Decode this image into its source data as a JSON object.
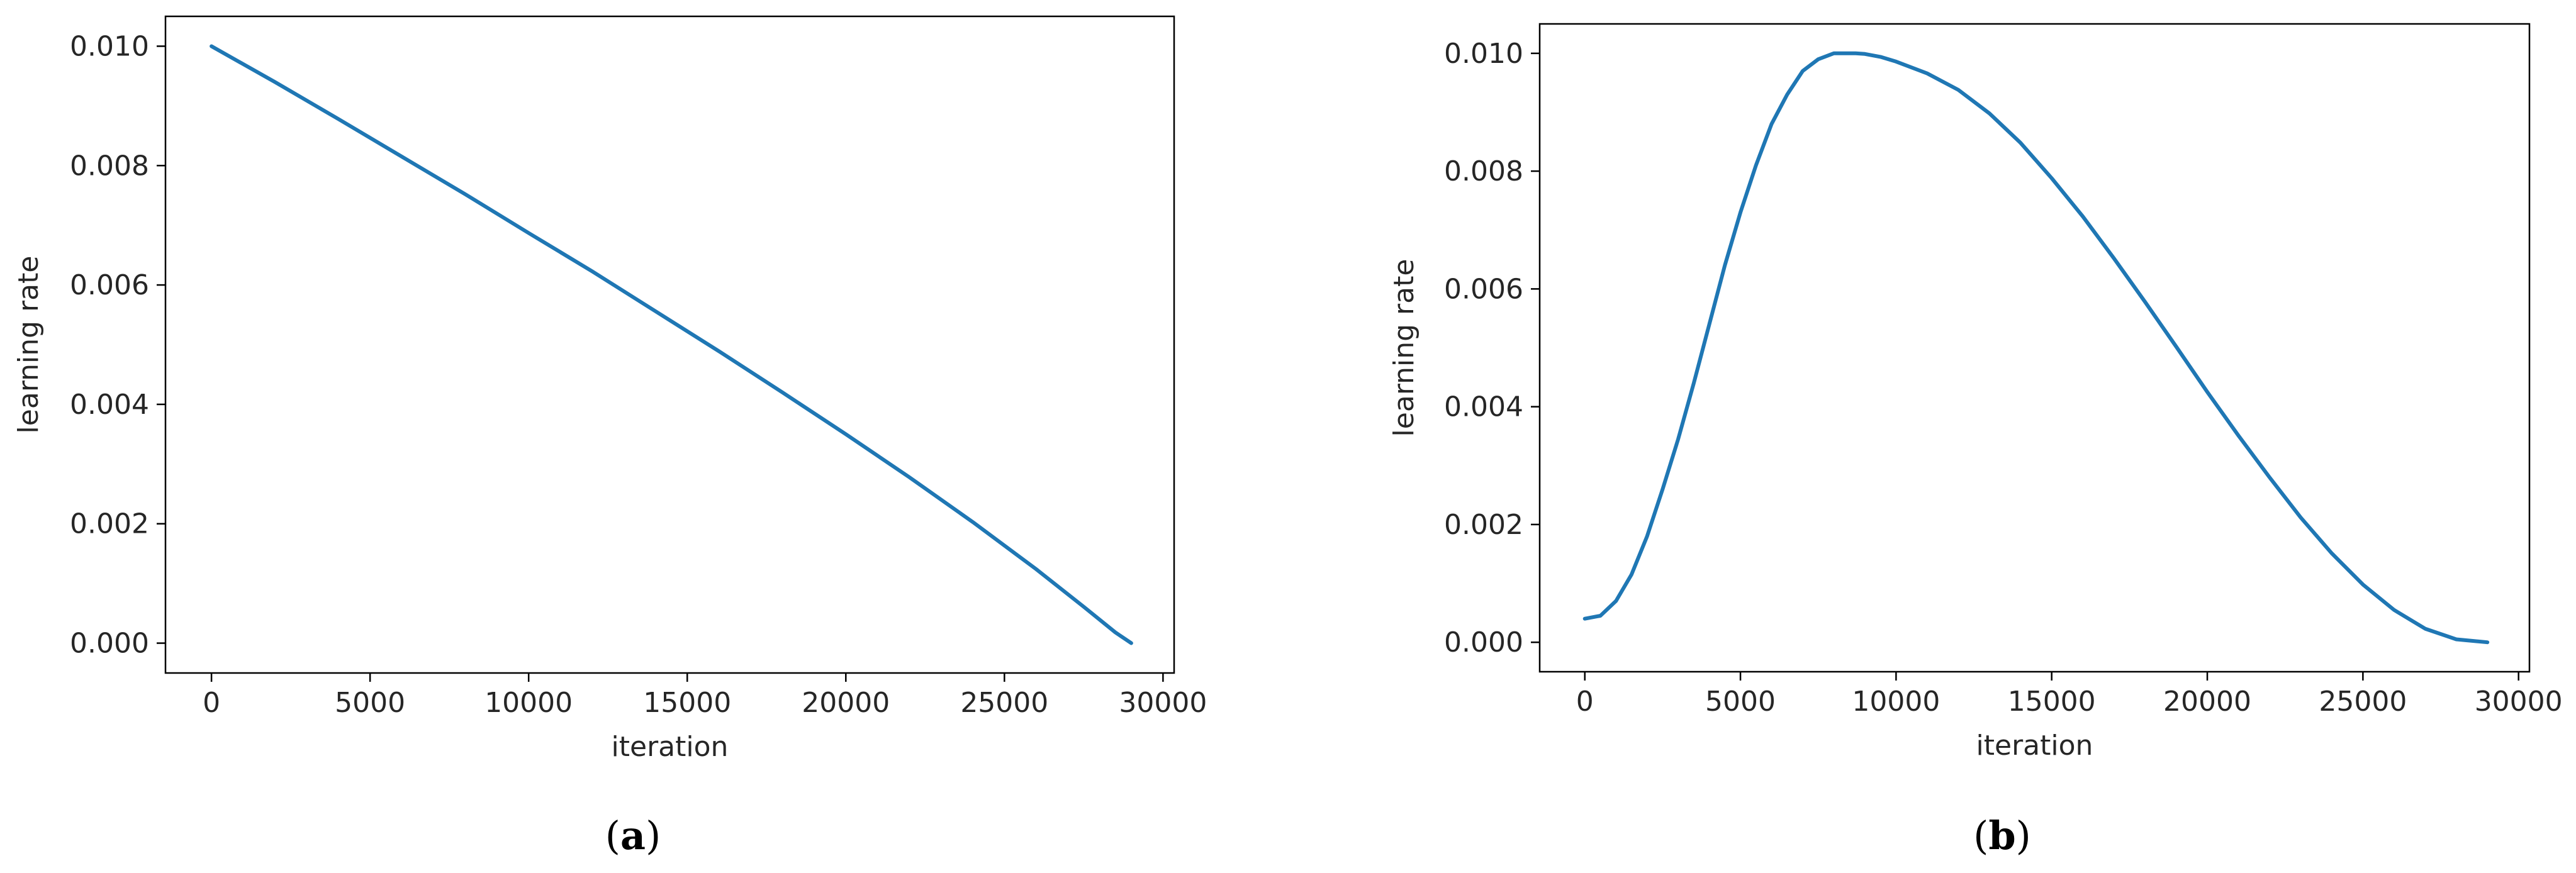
{
  "chart_data": [
    {
      "type": "line",
      "caption": "a",
      "xlabel": "iteration",
      "ylabel": "learning rate",
      "xlim": [
        -1450,
        30350
      ],
      "ylim": [
        -0.0005,
        0.0105
      ],
      "xticks": [
        0,
        5000,
        10000,
        15000,
        20000,
        25000,
        30000
      ],
      "xtick_labels": [
        "0",
        "5000",
        "10000",
        "15000",
        "20000",
        "25000",
        "30000"
      ],
      "yticks": [
        0.0,
        0.002,
        0.004,
        0.006,
        0.008,
        0.01
      ],
      "ytick_labels": [
        "0.000",
        "0.002",
        "0.004",
        "0.006",
        "0.008",
        "0.010"
      ],
      "grid": false,
      "color": "#1f77b4",
      "series": [
        {
          "x": [
            0,
            2000,
            4000,
            6000,
            8000,
            10000,
            12000,
            14000,
            16000,
            18000,
            20000,
            22000,
            24000,
            26000,
            27500,
            28500,
            29000
          ],
          "y": [
            0.01,
            0.0094,
            0.00878,
            0.00815,
            0.00752,
            0.00687,
            0.00623,
            0.00556,
            0.00489,
            0.0042,
            0.0035,
            0.00278,
            0.00203,
            0.00124,
            0.00061,
            0.00018,
            0.0
          ]
        }
      ]
    },
    {
      "type": "line",
      "caption": "b",
      "xlabel": "iteration",
      "ylabel": "learning rate",
      "xlim": [
        -1450,
        30350
      ],
      "ylim": [
        -0.0005,
        0.0105
      ],
      "xticks": [
        0,
        5000,
        10000,
        15000,
        20000,
        25000,
        30000
      ],
      "xtick_labels": [
        "0",
        "5000",
        "10000",
        "15000",
        "20000",
        "25000",
        "30000"
      ],
      "yticks": [
        0.0,
        0.002,
        0.004,
        0.006,
        0.008,
        0.01
      ],
      "ytick_labels": [
        "0.000",
        "0.002",
        "0.004",
        "0.006",
        "0.008",
        "0.010"
      ],
      "grid": false,
      "color": "#1f77b4",
      "series": [
        {
          "x": [
            0,
            500,
            1000,
            1500,
            2000,
            2500,
            3000,
            3500,
            4000,
            4500,
            5000,
            5500,
            6000,
            6500,
            7000,
            7500,
            8000,
            8500,
            8700,
            9000,
            9500,
            10000,
            11000,
            12000,
            13000,
            14000,
            15000,
            16000,
            17000,
            18000,
            19000,
            20000,
            21000,
            22000,
            23000,
            24000,
            25000,
            26000,
            27000,
            28000,
            29000
          ],
          "y": [
            0.0004,
            0.00045,
            0.0007,
            0.00115,
            0.0018,
            0.0026,
            0.00345,
            0.0044,
            0.0054,
            0.0064,
            0.0073,
            0.0081,
            0.0088,
            0.0093,
            0.0097,
            0.0099,
            0.01,
            0.01,
            0.01,
            0.00999,
            0.00994,
            0.00986,
            0.00966,
            0.00938,
            0.00898,
            0.00848,
            0.00788,
            0.00723,
            0.00652,
            0.00578,
            0.00502,
            0.00425,
            0.00351,
            0.0028,
            0.00212,
            0.00151,
            0.00098,
            0.00055,
            0.00023,
            5e-05,
            0.0
          ]
        }
      ]
    }
  ]
}
